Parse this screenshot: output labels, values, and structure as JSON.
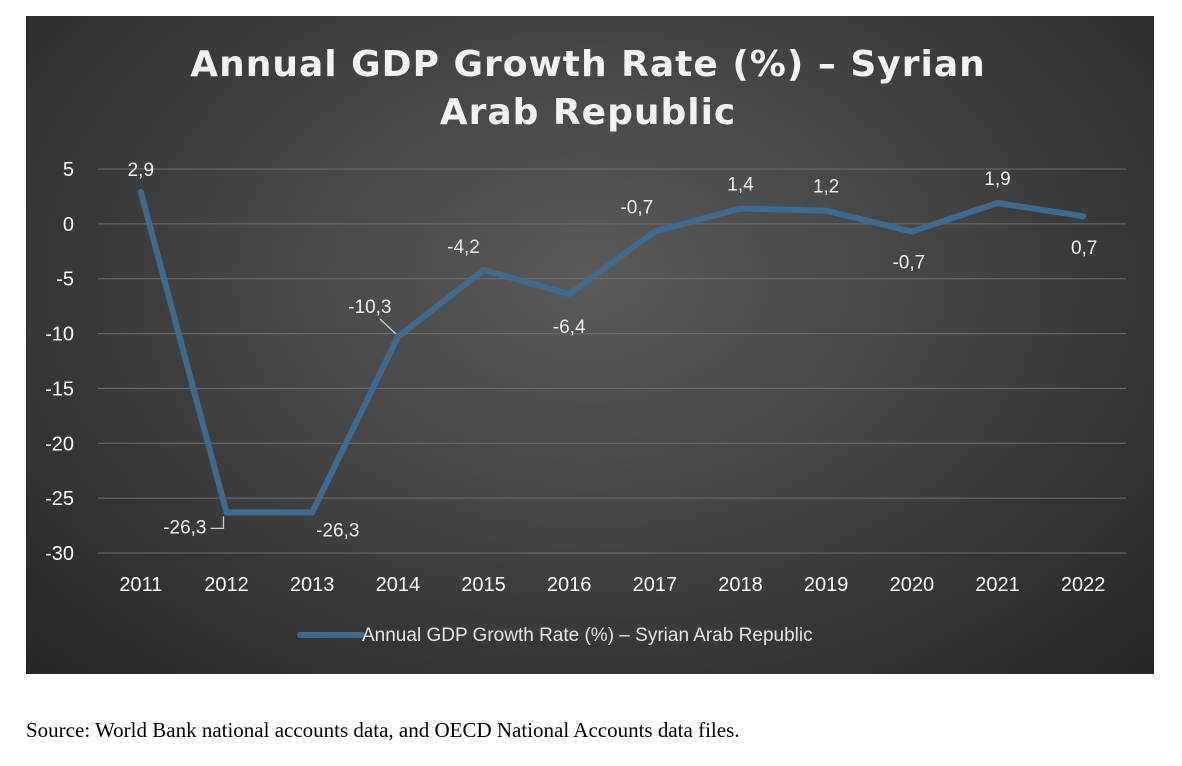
{
  "chart_data": {
    "type": "line",
    "title_lines": [
      "Annual GDP Growth Rate (%) – Syrian",
      "Arab Republic"
    ],
    "categories": [
      "2011",
      "2012",
      "2013",
      "2014",
      "2015",
      "2016",
      "2017",
      "2018",
      "2019",
      "2020",
      "2021",
      "2022"
    ],
    "series": [
      {
        "name": "Annual GDP Growth Rate (%) – Syrian Arab Republic",
        "values": [
          2.9,
          -26.3,
          -26.3,
          -10.3,
          -4.2,
          -6.4,
          -0.7,
          1.4,
          1.2,
          -0.7,
          1.9,
          0.7
        ],
        "data_labels": [
          "2,9",
          "-26,3",
          "-26,3",
          "-10,3",
          "-4,2",
          "-6,4",
          "-0,7",
          "1,4",
          "1,2",
          "-0,7",
          "1,9",
          "0,7"
        ],
        "color": "#3e6a8e"
      }
    ],
    "y_ticks": [
      5,
      0,
      -5,
      -10,
      -15,
      -20,
      -25,
      -30
    ],
    "y_tick_labels": [
      "5",
      "0",
      "-5",
      "-10",
      "-15",
      "-20",
      "-25",
      "-30"
    ],
    "ylim": [
      -30,
      5
    ],
    "xlabel": "",
    "ylabel": "",
    "grid": true,
    "legend_position": "bottom"
  },
  "source_note": "Source: World Bank national accounts data, and OECD National Accounts data files."
}
